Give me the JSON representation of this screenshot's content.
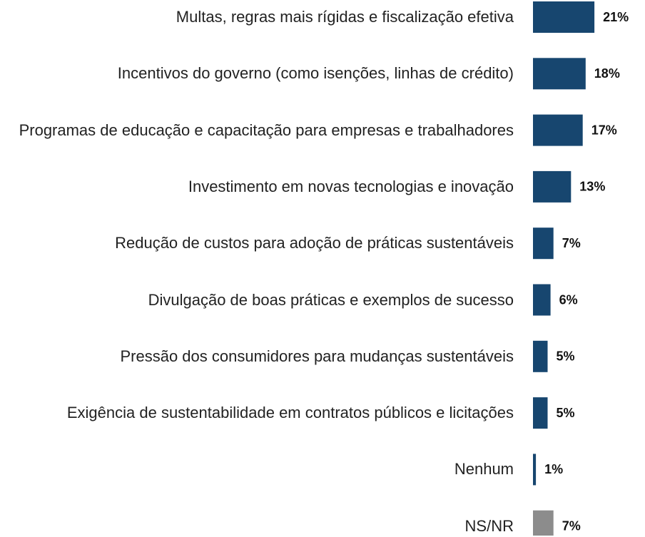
{
  "chart_data": {
    "type": "bar",
    "orientation": "horizontal",
    "categories": [
      "Multas, regras mais rígidas e fiscalização efetiva",
      "Incentivos do governo (como isenções, linhas de crédito)",
      "Programas de educação e capacitação para empresas e trabalhadores",
      "Investimento em novas tecnologias e inovação",
      "Redução de custos para adoção de práticas sustentáveis",
      "Divulgação de boas práticas e exemplos de sucesso",
      "Pressão dos consumidores para mudanças sustentáveis",
      "Exigência de sustentabilidade em contratos públicos e licitações",
      "Nenhum",
      "NS/NR"
    ],
    "values": [
      21,
      18,
      17,
      13,
      7,
      6,
      5,
      5,
      1,
      7
    ],
    "value_labels": [
      "21%",
      "18%",
      "17%",
      "13%",
      "7%",
      "6%",
      "5%",
      "5%",
      "1%",
      "7%"
    ],
    "colors": [
      "#17466f",
      "#17466f",
      "#17466f",
      "#17466f",
      "#17466f",
      "#17466f",
      "#17466f",
      "#17466f",
      "#17466f",
      "#8c8c8c"
    ]
  }
}
